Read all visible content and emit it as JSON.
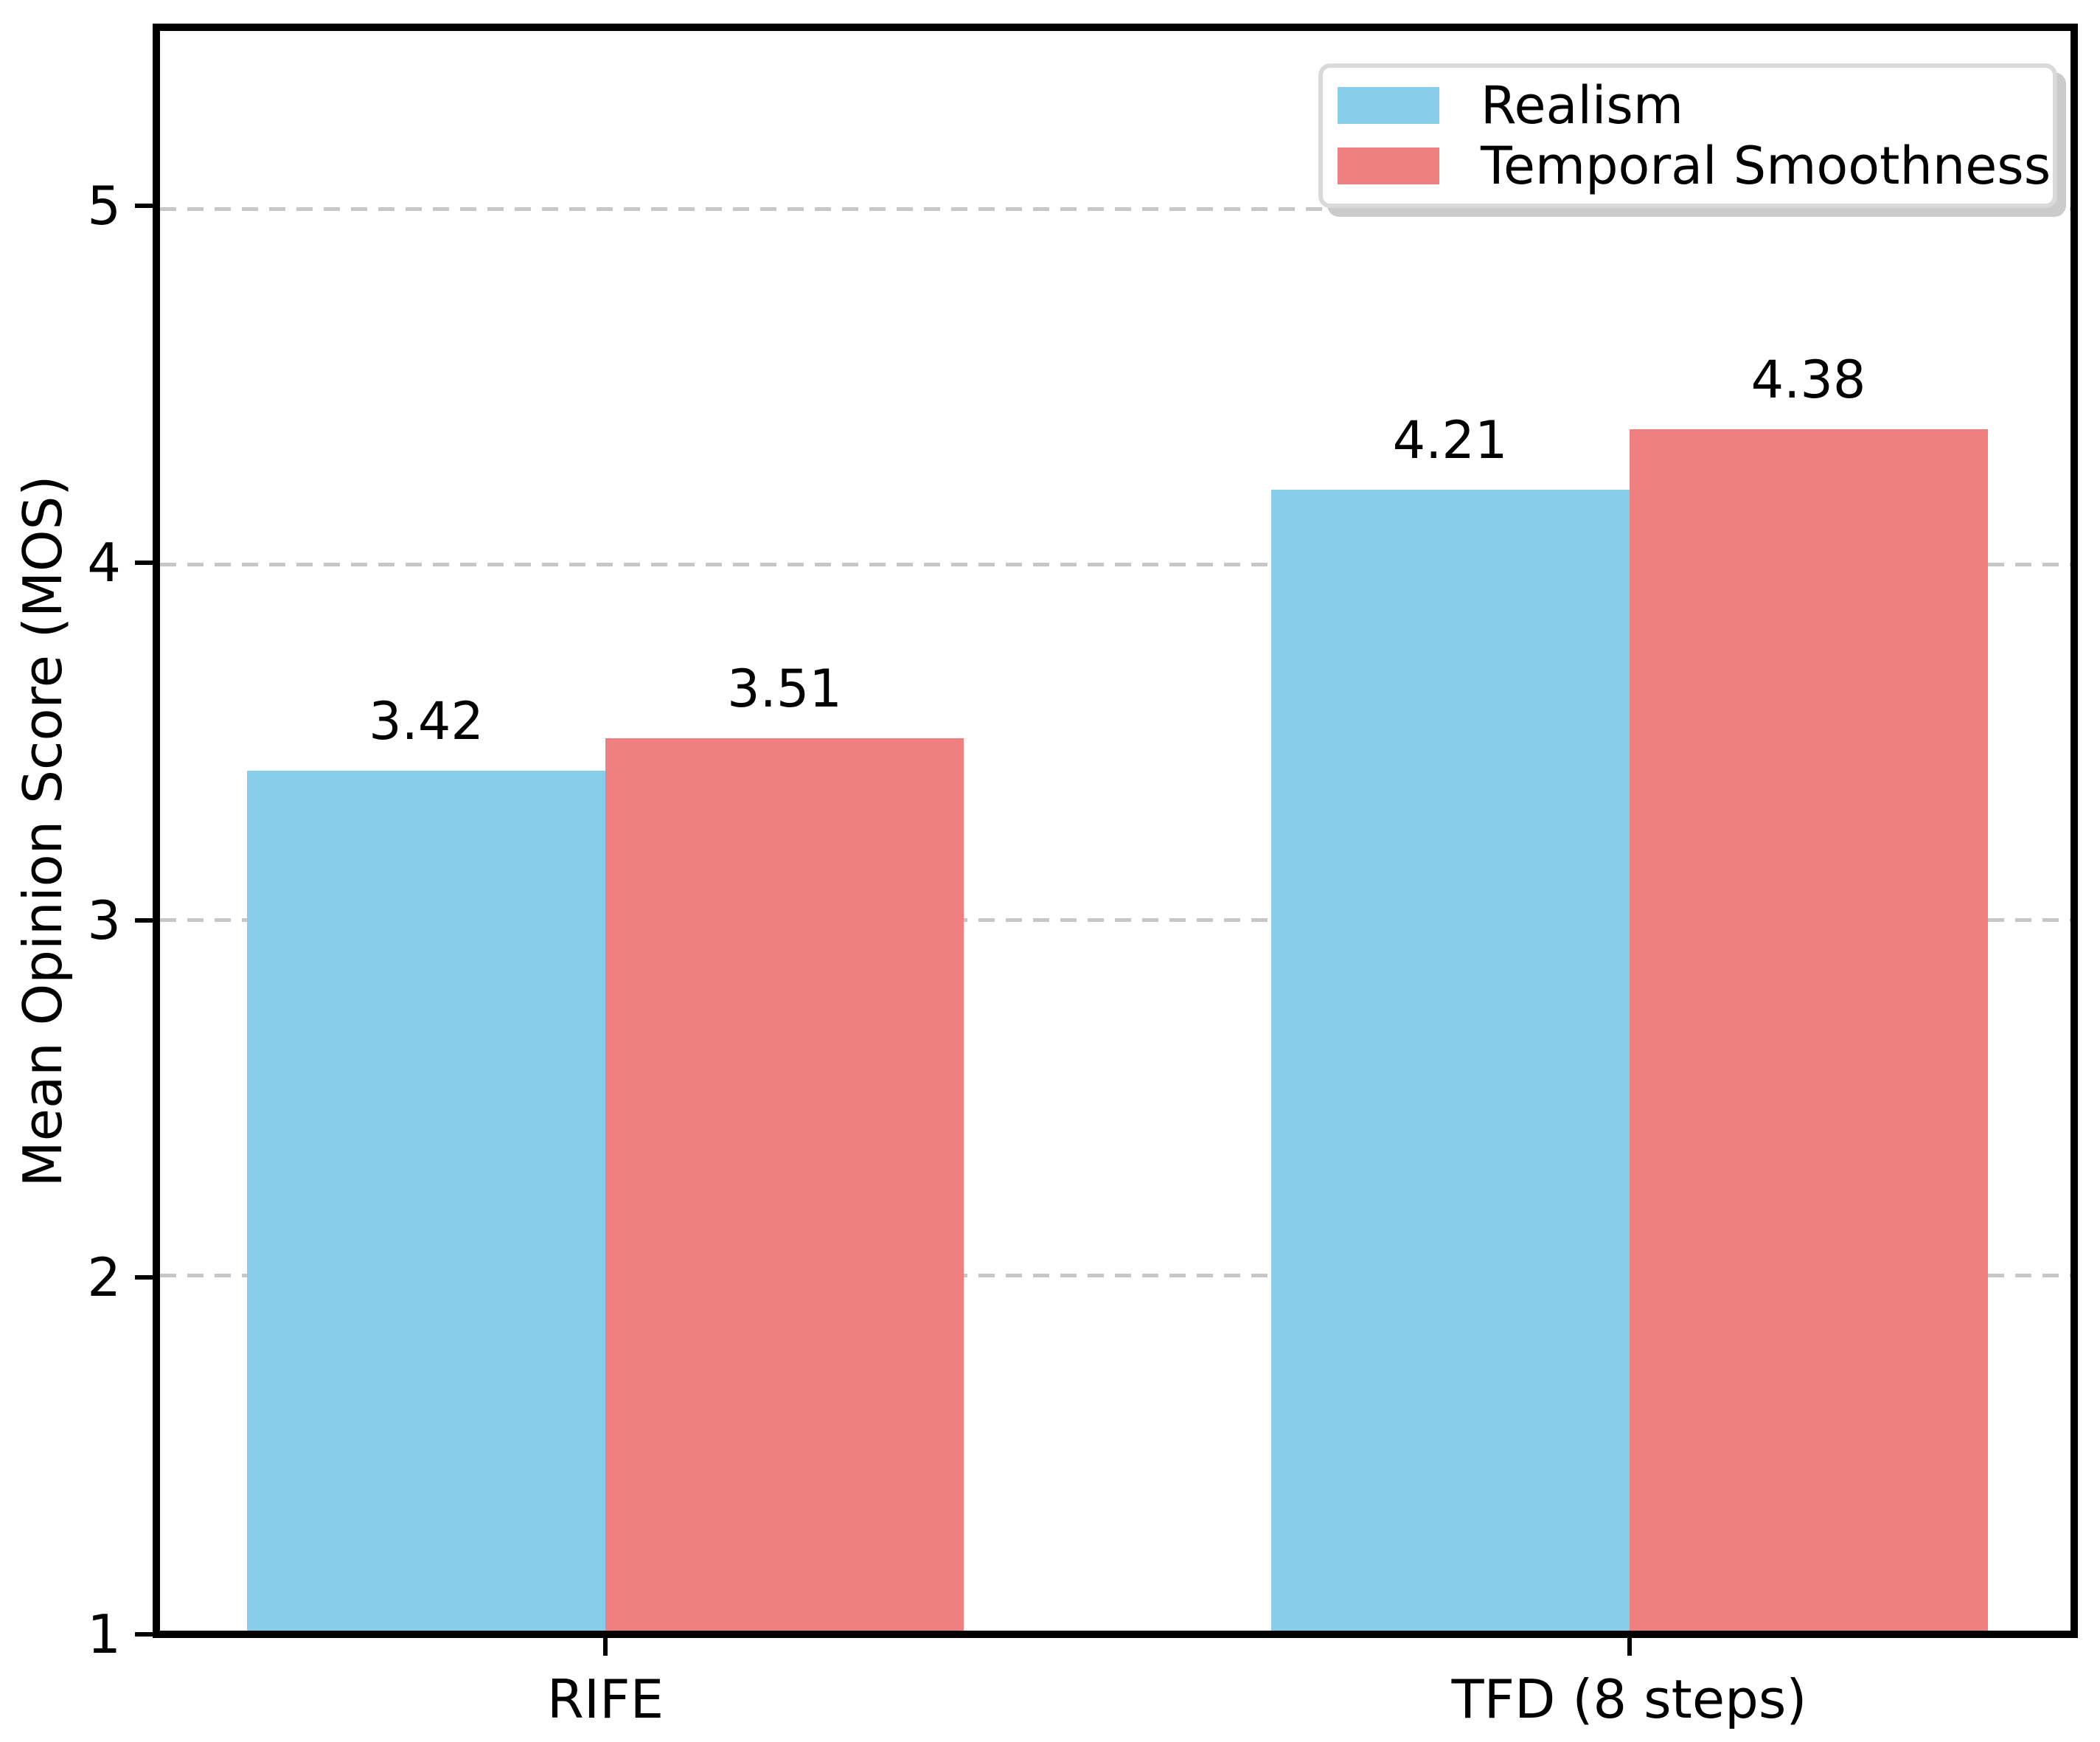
{
  "figure": {
    "background": "#ffffff",
    "text_color": "#000000",
    "spine_color": "#000000"
  },
  "chart_data": {
    "type": "bar",
    "title": "",
    "xlabel": "",
    "ylabel": "Mean Opinion Score (MOS)",
    "categories": [
      "RIFE",
      "TFD (8 steps)"
    ],
    "series": [
      {
        "name": "Realism",
        "color": "#87CEEB",
        "values": [
          3.42,
          4.21
        ]
      },
      {
        "name": "Temporal Smoothness",
        "color": "#F08080",
        "values": [
          3.51,
          4.38
        ]
      }
    ],
    "value_labels": {
      "Realism": [
        "3.42",
        "4.21"
      ],
      "Temporal Smoothness": [
        "3.51",
        "4.38"
      ]
    },
    "ylim": [
      1,
      5.5
    ],
    "yticks": [
      1,
      2,
      3,
      4,
      5
    ],
    "x_positions": [
      0,
      1
    ],
    "xlim": [
      -0.435,
      1.431
    ],
    "bar_width": 0.35,
    "grid": {
      "axis": "y",
      "style": "dashed",
      "color": "#c7c7c7",
      "on": true
    },
    "legend": {
      "position": "upper right",
      "entries": [
        "Realism",
        "Temporal Smoothness"
      ],
      "border_color": "#d9d9d9",
      "shadow_color": "#cbcbcb",
      "background": "#ffffff"
    }
  }
}
